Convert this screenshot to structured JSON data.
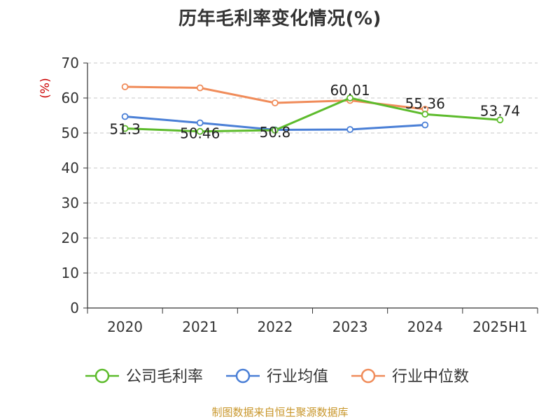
{
  "title": "历年毛利率变化情况(%)",
  "source": "制图数据来自恒生聚源数据库",
  "chart_data": {
    "type": "line",
    "title": "历年毛利率变化情况(%)",
    "unit": "(%)",
    "categories": [
      "2020",
      "2021",
      "2022",
      "2023",
      "2024",
      "2025H1"
    ],
    "ylim": [
      0,
      70
    ],
    "yticks": [
      0,
      10,
      20,
      30,
      40,
      50,
      60,
      70
    ],
    "grid": true,
    "legend_position": "bottom",
    "series": [
      {
        "name": "公司毛利率",
        "color": "#5dbb2c",
        "values": [
          51.3,
          50.46,
          50.8,
          60.01,
          55.36,
          53.74
        ],
        "data_labels": [
          "51.3",
          "50.46",
          "50.8",
          "60.01",
          "55.36",
          "53.74"
        ]
      },
      {
        "name": "行业均值",
        "color": "#4a7fd6",
        "values": [
          54.7,
          52.9,
          50.9,
          51.0,
          52.3,
          null
        ],
        "data_labels": []
      },
      {
        "name": "行业中位数",
        "color": "#f08c5a",
        "values": [
          63.2,
          62.9,
          58.6,
          59.3,
          56.8,
          null
        ],
        "data_labels": []
      }
    ]
  }
}
